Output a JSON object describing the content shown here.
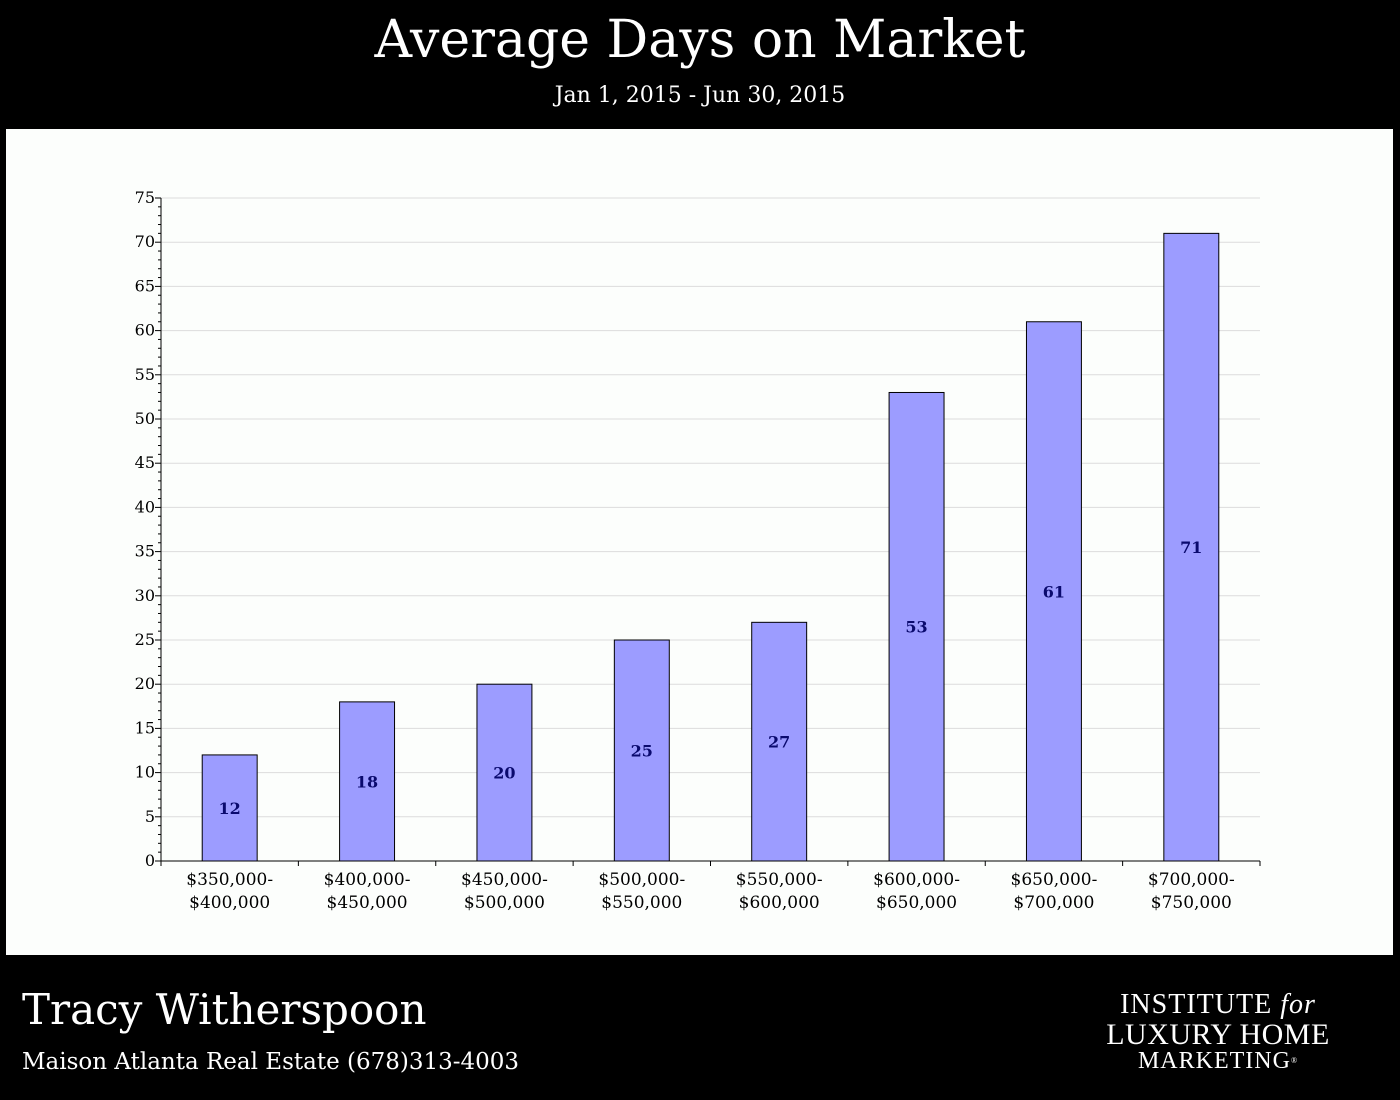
{
  "header": {
    "title": "Average Days on Market",
    "subtitle": "Jan 1, 2015 - Jun 30, 2015"
  },
  "footer": {
    "agent_name": "Tracy Witherspoon",
    "agent_company": "Maison Atlanta Real Estate (678)313-4003",
    "logo": {
      "line1": "INSTITUTE",
      "line1_italic": "for",
      "line2": "LUXURY HOME",
      "line3": "MARKETING"
    }
  },
  "colors": {
    "bar_fill": "#9c9cff",
    "bar_stroke": "#000000",
    "bar_label": "#0a0a6e",
    "grid": "#dcdcdc",
    "panel": "#fcfefc",
    "background": "#000000"
  },
  "chart_data": {
    "type": "bar",
    "title": "Average Days on Market",
    "subtitle": "Jan 1, 2015 - Jun 30, 2015",
    "categories": [
      [
        "$350,000-",
        "$400,000"
      ],
      [
        "$400,000-",
        "$450,000"
      ],
      [
        "$450,000-",
        "$500,000"
      ],
      [
        "$500,000-",
        "$550,000"
      ],
      [
        "$550,000-",
        "$600,000"
      ],
      [
        "$600,000-",
        "$650,000"
      ],
      [
        "$650,000-",
        "$700,000"
      ],
      [
        "$700,000-",
        "$750,000"
      ]
    ],
    "values": [
      12,
      18,
      20,
      25,
      27,
      53,
      61,
      71
    ],
    "ylim": [
      0,
      75
    ],
    "yticks": [
      0,
      5,
      10,
      15,
      20,
      25,
      30,
      35,
      40,
      45,
      50,
      55,
      60,
      65,
      70,
      75
    ],
    "xlabel": "",
    "ylabel": "",
    "grid": true,
    "legend": "none",
    "data_labels": "center"
  }
}
